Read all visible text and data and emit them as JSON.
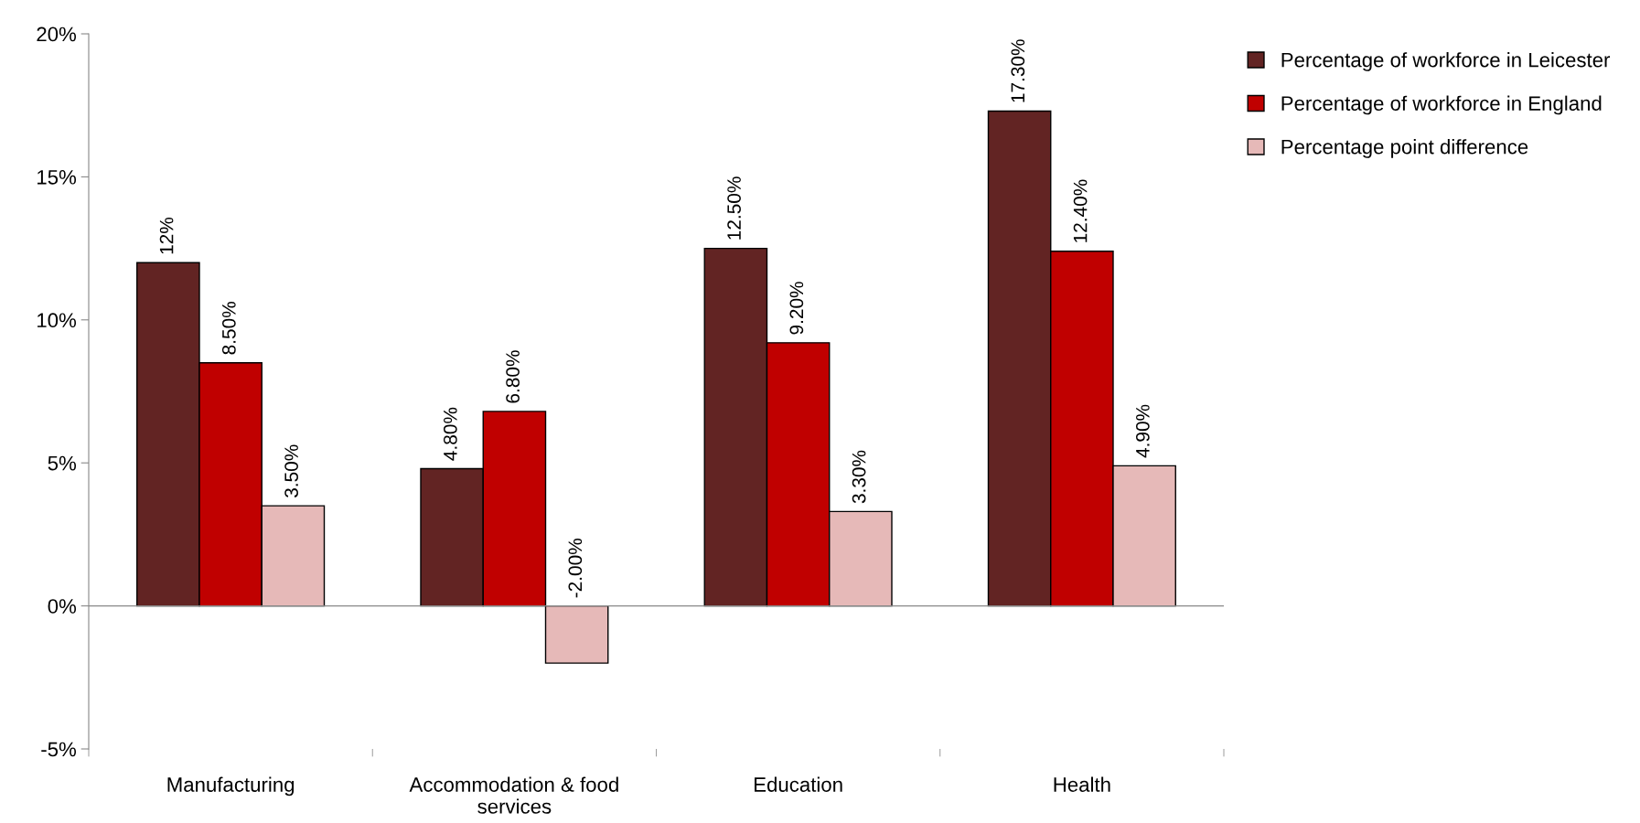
{
  "chart_data": {
    "type": "bar",
    "categories": [
      "Manufacturing",
      "Accommodation & food services",
      "Education",
      "Health"
    ],
    "series": [
      {
        "name": "Percentage of workforce in Leicester",
        "color": "#622423",
        "values": [
          12,
          4.8,
          12.5,
          17.3
        ],
        "value_labels": [
          "12%",
          "4.80%",
          "12.50%",
          "17.30%"
        ]
      },
      {
        "name": "Percentage of workforce in England",
        "color": "#c00000",
        "values": [
          8.5,
          6.8,
          9.2,
          12.4
        ],
        "value_labels": [
          "8.50%",
          "6.80%",
          "9.20%",
          "12.40%"
        ]
      },
      {
        "name": "Percentage point difference",
        "color": "#e6b9b8",
        "values": [
          3.5,
          -2,
          3.3,
          4.9
        ],
        "value_labels": [
          "3.50%",
          "-2.00%",
          "3.30%",
          "4.90%"
        ]
      }
    ],
    "ylim": [
      -5,
      20
    ],
    "yticks": [
      {
        "value": -5,
        "label": "-5%"
      },
      {
        "value": 0,
        "label": "0%"
      },
      {
        "value": 5,
        "label": "5%"
      },
      {
        "value": 10,
        "label": "10%"
      },
      {
        "value": 15,
        "label": "15%"
      },
      {
        "value": 20,
        "label": "20%"
      }
    ],
    "ref_lines": [
      {
        "axis": "y",
        "value": 0,
        "color": "#888888"
      }
    ],
    "grid": false,
    "legend": "top right"
  }
}
